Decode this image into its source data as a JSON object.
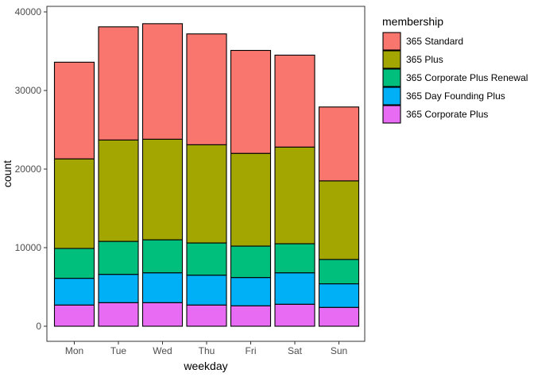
{
  "chart_data": {
    "type": "bar",
    "stacked": true,
    "title": "",
    "xlabel": "weekday",
    "ylabel": "count",
    "categories": [
      "Mon",
      "Tue",
      "Wed",
      "Thu",
      "Fri",
      "Sat",
      "Sun"
    ],
    "ylim": [
      0,
      40000
    ],
    "yticks": [
      0,
      10000,
      20000,
      30000,
      40000
    ],
    "ytick_labels": [
      "0",
      "10000",
      "20000",
      "30000",
      "40000"
    ],
    "grid": false,
    "legend": {
      "title": "membership",
      "position": "right"
    },
    "series": [
      {
        "name": "365 Corporate Plus",
        "color": "#E76BF3",
        "values": [
          2700,
          3000,
          3000,
          2700,
          2600,
          2800,
          2400
        ]
      },
      {
        "name": "365 Day Founding Plus",
        "color": "#00B0F6",
        "values": [
          3400,
          3600,
          3800,
          3800,
          3600,
          4000,
          3000
        ]
      },
      {
        "name": "365 Corporate Plus Renewal",
        "color": "#00BF7D",
        "values": [
          3800,
          4200,
          4200,
          4100,
          4000,
          3700,
          3100
        ]
      },
      {
        "name": "365 Plus",
        "color": "#A3A500",
        "values": [
          11400,
          12900,
          12800,
          12500,
          11800,
          12300,
          10000
        ]
      },
      {
        "name": "365 Standard",
        "color": "#F8766D",
        "values": [
          12300,
          14400,
          14700,
          14100,
          13100,
          11700,
          9400
        ]
      }
    ],
    "legend_order": [
      "365 Standard",
      "365 Plus",
      "365 Corporate Plus Renewal",
      "365 Day Founding Plus",
      "365 Corporate Plus"
    ]
  }
}
